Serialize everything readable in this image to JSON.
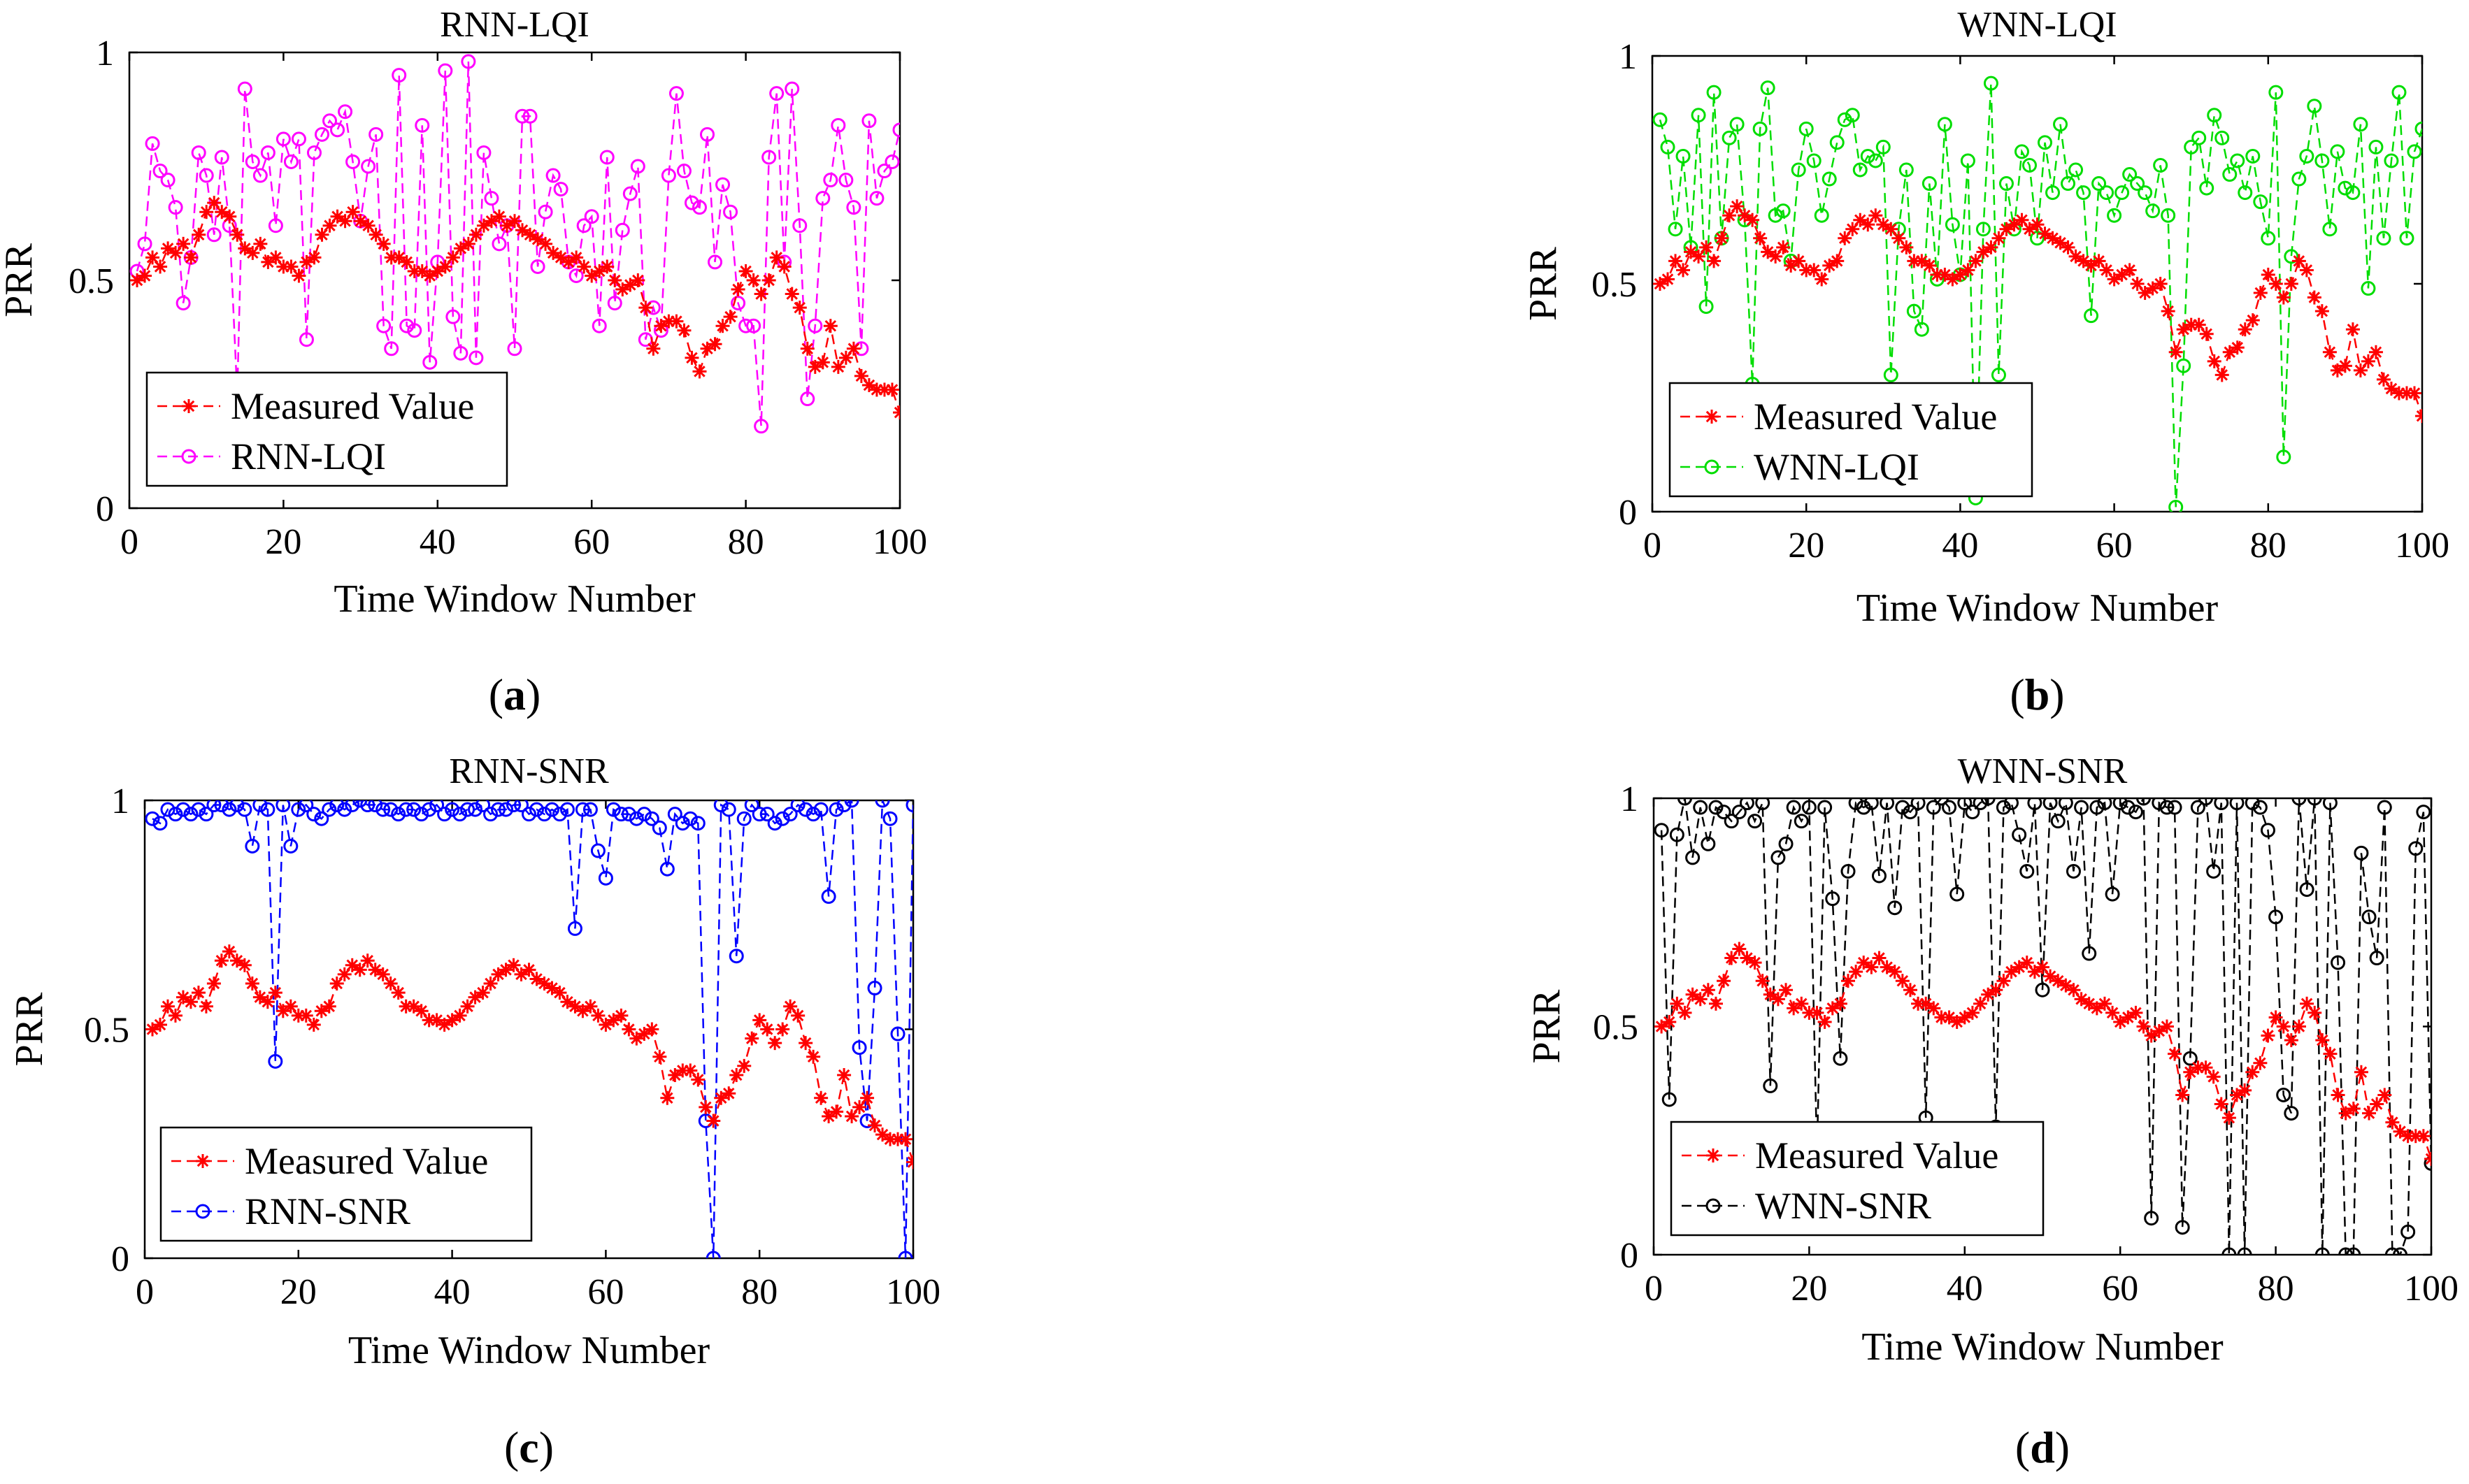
{
  "chart_data": [
    {
      "panel": "a",
      "type": "line",
      "title": "RNN-LQI",
      "xlabel": "Time Window Number",
      "ylabel": "PRR",
      "caption": "(a)",
      "xlim": [
        0,
        100
      ],
      "ylim": [
        0,
        1
      ],
      "xticks": [
        "0",
        "20",
        "40",
        "60",
        "80",
        "100"
      ],
      "yticks": [
        "0",
        "0.5",
        "1"
      ],
      "grid": false,
      "legend_position": "bottom-left",
      "series": [
        {
          "name": "Measured Value",
          "color": "#ff0000",
          "marker": "star",
          "values": [
            0.5,
            0.51,
            0.55,
            0.53,
            0.57,
            0.56,
            0.58,
            0.55,
            0.6,
            0.65,
            0.67,
            0.65,
            0.64,
            0.6,
            0.57,
            0.56,
            0.58,
            0.54,
            0.55,
            0.53,
            0.53,
            0.51,
            0.54,
            0.55,
            0.6,
            0.62,
            0.64,
            0.63,
            0.65,
            0.63,
            0.62,
            0.6,
            0.58,
            0.55,
            0.55,
            0.54,
            0.52,
            0.52,
            0.51,
            0.52,
            0.53,
            0.55,
            0.57,
            0.58,
            0.6,
            0.62,
            0.63,
            0.64,
            0.62,
            0.63,
            0.61,
            0.6,
            0.59,
            0.58,
            0.56,
            0.55,
            0.54,
            0.55,
            0.53,
            0.51,
            0.52,
            0.53,
            0.5,
            0.48,
            0.49,
            0.5,
            0.44,
            0.35,
            0.4,
            0.41,
            0.41,
            0.39,
            0.33,
            0.3,
            0.35,
            0.36,
            0.4,
            0.42,
            0.48,
            0.52,
            0.5,
            0.47,
            0.5,
            0.55,
            0.53,
            0.47,
            0.44,
            0.35,
            0.31,
            0.32,
            0.4,
            0.31,
            0.33,
            0.35,
            0.29,
            0.27,
            0.26,
            0.26,
            0.26,
            0.21
          ]
        },
        {
          "name": "RNN-LQI",
          "color": "#ff00ff",
          "marker": "circle",
          "values": [
            0.52,
            0.58,
            0.8,
            0.74,
            0.72,
            0.66,
            0.45,
            0.55,
            0.78,
            0.73,
            0.6,
            0.77,
            0.62,
            0.25,
            0.92,
            0.76,
            0.73,
            0.78,
            0.62,
            0.81,
            0.76,
            0.81,
            0.37,
            0.78,
            0.82,
            0.85,
            0.83,
            0.87,
            0.76,
            0.63,
            0.75,
            0.82,
            0.4,
            0.35,
            0.95,
            0.4,
            0.39,
            0.84,
            0.32,
            0.54,
            0.96,
            0.42,
            0.34,
            0.98,
            0.33,
            0.78,
            0.68,
            0.58,
            0.62,
            0.35,
            0.86,
            0.86,
            0.53,
            0.65,
            0.73,
            0.7,
            0.54,
            0.51,
            0.62,
            0.64,
            0.4,
            0.77,
            0.45,
            0.61,
            0.69,
            0.75,
            0.37,
            0.44,
            0.39,
            0.73,
            0.91,
            0.74,
            0.67,
            0.66,
            0.82,
            0.54,
            0.71,
            0.65,
            0.45,
            0.4,
            0.4,
            0.18,
            0.77,
            0.91,
            0.54,
            0.92,
            0.62,
            0.24,
            0.4,
            0.68,
            0.72,
            0.84,
            0.72,
            0.66,
            0.35,
            0.85,
            0.68,
            0.74,
            0.76,
            0.83
          ]
        }
      ]
    },
    {
      "panel": "b",
      "type": "line",
      "title": "WNN-LQI",
      "xlabel": "Time Window Number",
      "ylabel": "PRR",
      "caption": "(b)",
      "xlim": [
        0,
        100
      ],
      "ylim": [
        0,
        1
      ],
      "xticks": [
        "0",
        "20",
        "40",
        "60",
        "80",
        "100"
      ],
      "yticks": [
        "0",
        "0.5",
        "1"
      ],
      "grid": false,
      "legend_position": "bottom-left",
      "series": [
        {
          "name": "Measured Value",
          "color": "#ff0000",
          "marker": "star",
          "values": [
            0.5,
            0.51,
            0.55,
            0.53,
            0.57,
            0.56,
            0.58,
            0.55,
            0.6,
            0.65,
            0.67,
            0.65,
            0.64,
            0.6,
            0.57,
            0.56,
            0.58,
            0.54,
            0.55,
            0.53,
            0.53,
            0.51,
            0.54,
            0.55,
            0.6,
            0.62,
            0.64,
            0.63,
            0.65,
            0.63,
            0.62,
            0.6,
            0.58,
            0.55,
            0.55,
            0.54,
            0.52,
            0.52,
            0.51,
            0.52,
            0.53,
            0.55,
            0.57,
            0.58,
            0.6,
            0.62,
            0.63,
            0.64,
            0.62,
            0.63,
            0.61,
            0.6,
            0.59,
            0.58,
            0.56,
            0.55,
            0.54,
            0.55,
            0.53,
            0.51,
            0.52,
            0.53,
            0.5,
            0.48,
            0.49,
            0.5,
            0.44,
            0.35,
            0.4,
            0.41,
            0.41,
            0.39,
            0.33,
            0.3,
            0.35,
            0.36,
            0.4,
            0.42,
            0.48,
            0.52,
            0.5,
            0.47,
            0.5,
            0.55,
            0.53,
            0.47,
            0.44,
            0.35,
            0.31,
            0.32,
            0.4,
            0.31,
            0.33,
            0.35,
            0.29,
            0.27,
            0.26,
            0.26,
            0.26,
            0.21
          ]
        },
        {
          "name": "WNN-LQI",
          "color": "#00dd00",
          "marker": "circle",
          "values": [
            0.86,
            0.8,
            0.62,
            0.78,
            0.58,
            0.87,
            0.45,
            0.92,
            0.6,
            0.82,
            0.85,
            0.64,
            0.28,
            0.84,
            0.93,
            0.65,
            0.66,
            0.55,
            0.75,
            0.84,
            0.77,
            0.65,
            0.73,
            0.81,
            0.86,
            0.87,
            0.75,
            0.78,
            0.77,
            0.8,
            0.3,
            0.62,
            0.75,
            0.44,
            0.4,
            0.72,
            0.51,
            0.85,
            0.63,
            0.52,
            0.77,
            0.03,
            0.62,
            0.94,
            0.3,
            0.72,
            0.62,
            0.79,
            0.76,
            0.6,
            0.81,
            0.7,
            0.85,
            0.72,
            0.75,
            0.7,
            0.43,
            0.72,
            0.7,
            0.65,
            0.7,
            0.74,
            0.72,
            0.7,
            0.66,
            0.76,
            0.65,
            0.01,
            0.32,
            0.8,
            0.82,
            0.71,
            0.87,
            0.82,
            0.74,
            0.77,
            0.7,
            0.78,
            0.68,
            0.6,
            0.92,
            0.12,
            0.56,
            0.73,
            0.78,
            0.89,
            0.77,
            0.62,
            0.79,
            0.71,
            0.7,
            0.85,
            0.49,
            0.8,
            0.6,
            0.77,
            0.92,
            0.6,
            0.79,
            0.84
          ]
        }
      ]
    },
    {
      "panel": "c",
      "type": "line",
      "title": "RNN-SNR",
      "xlabel": "Time Window Number",
      "ylabel": "PRR",
      "caption": "(c)",
      "xlim": [
        0,
        100
      ],
      "ylim": [
        0,
        1
      ],
      "xticks": [
        "0",
        "20",
        "40",
        "60",
        "80",
        "100"
      ],
      "yticks": [
        "0",
        "0.5",
        "1"
      ],
      "grid": false,
      "legend_position": "bottom-left",
      "series": [
        {
          "name": "Measured Value",
          "color": "#ff0000",
          "marker": "star",
          "values": [
            0.5,
            0.51,
            0.55,
            0.53,
            0.57,
            0.56,
            0.58,
            0.55,
            0.6,
            0.65,
            0.67,
            0.65,
            0.64,
            0.6,
            0.57,
            0.56,
            0.58,
            0.54,
            0.55,
            0.53,
            0.53,
            0.51,
            0.54,
            0.55,
            0.6,
            0.62,
            0.64,
            0.63,
            0.65,
            0.63,
            0.62,
            0.6,
            0.58,
            0.55,
            0.55,
            0.54,
            0.52,
            0.52,
            0.51,
            0.52,
            0.53,
            0.55,
            0.57,
            0.58,
            0.6,
            0.62,
            0.63,
            0.64,
            0.62,
            0.63,
            0.61,
            0.6,
            0.59,
            0.58,
            0.56,
            0.55,
            0.54,
            0.55,
            0.53,
            0.51,
            0.52,
            0.53,
            0.5,
            0.48,
            0.49,
            0.5,
            0.44,
            0.35,
            0.4,
            0.41,
            0.41,
            0.39,
            0.33,
            0.3,
            0.35,
            0.36,
            0.4,
            0.42,
            0.48,
            0.52,
            0.5,
            0.47,
            0.5,
            0.55,
            0.53,
            0.47,
            0.44,
            0.35,
            0.31,
            0.32,
            0.4,
            0.31,
            0.33,
            0.35,
            0.29,
            0.27,
            0.26,
            0.26,
            0.26,
            0.21
          ]
        },
        {
          "name": "RNN-SNR",
          "color": "#0000ff",
          "marker": "circle",
          "values": [
            0.96,
            0.95,
            0.98,
            0.97,
            0.98,
            0.97,
            0.98,
            0.97,
            0.99,
            0.99,
            0.98,
            0.99,
            0.98,
            0.9,
            0.99,
            0.98,
            0.43,
            0.99,
            0.9,
            0.98,
            0.99,
            0.97,
            0.96,
            0.98,
            0.99,
            0.98,
            0.99,
            1.0,
            0.99,
            0.99,
            0.98,
            0.98,
            0.97,
            0.98,
            0.98,
            0.97,
            0.98,
            0.99,
            0.97,
            0.98,
            0.97,
            0.98,
            0.98,
            0.99,
            0.97,
            0.98,
            0.98,
            0.99,
            0.99,
            0.97,
            0.98,
            0.97,
            0.98,
            0.97,
            0.98,
            0.72,
            0.98,
            0.98,
            0.89,
            0.83,
            0.98,
            0.97,
            0.97,
            0.96,
            0.97,
            0.96,
            0.94,
            0.85,
            0.97,
            0.95,
            0.96,
            0.95,
            0.3,
            0.0,
            0.99,
            0.98,
            0.66,
            0.96,
            0.99,
            0.97,
            0.97,
            0.95,
            0.96,
            0.97,
            0.99,
            0.98,
            0.97,
            0.98,
            0.79,
            0.98,
            0.99,
            1.0,
            0.46,
            0.3,
            0.59,
            1.0,
            0.96,
            0.49,
            0.0,
            0.99
          ]
        }
      ]
    },
    {
      "panel": "d",
      "type": "line",
      "title": "WNN-SNR",
      "xlabel": "Time Window Number",
      "ylabel": "PRR",
      "caption": "(d)",
      "xlim": [
        0,
        100
      ],
      "ylim": [
        0,
        1
      ],
      "xticks": [
        "0",
        "20",
        "40",
        "60",
        "80",
        "100"
      ],
      "yticks": [
        "0",
        "0.5",
        "1"
      ],
      "grid": false,
      "legend_position": "bottom-left",
      "series": [
        {
          "name": "Measured Value",
          "color": "#ff0000",
          "marker": "star",
          "values": [
            0.5,
            0.51,
            0.55,
            0.53,
            0.57,
            0.56,
            0.58,
            0.55,
            0.6,
            0.65,
            0.67,
            0.65,
            0.64,
            0.6,
            0.57,
            0.56,
            0.58,
            0.54,
            0.55,
            0.53,
            0.53,
            0.51,
            0.54,
            0.55,
            0.6,
            0.62,
            0.64,
            0.63,
            0.65,
            0.63,
            0.62,
            0.6,
            0.58,
            0.55,
            0.55,
            0.54,
            0.52,
            0.52,
            0.51,
            0.52,
            0.53,
            0.55,
            0.57,
            0.58,
            0.6,
            0.62,
            0.63,
            0.64,
            0.62,
            0.63,
            0.61,
            0.6,
            0.59,
            0.58,
            0.56,
            0.55,
            0.54,
            0.55,
            0.53,
            0.51,
            0.52,
            0.53,
            0.5,
            0.48,
            0.49,
            0.5,
            0.44,
            0.35,
            0.4,
            0.41,
            0.41,
            0.39,
            0.33,
            0.3,
            0.35,
            0.36,
            0.4,
            0.42,
            0.48,
            0.52,
            0.5,
            0.47,
            0.5,
            0.55,
            0.53,
            0.47,
            0.44,
            0.35,
            0.31,
            0.32,
            0.4,
            0.31,
            0.33,
            0.35,
            0.29,
            0.27,
            0.26,
            0.26,
            0.26,
            0.21
          ]
        },
        {
          "name": "WNN-SNR",
          "color": "#000000",
          "marker": "circle",
          "values": [
            0.93,
            0.34,
            0.92,
            1.0,
            0.87,
            0.98,
            0.9,
            0.98,
            0.97,
            0.95,
            0.97,
            0.99,
            0.95,
            0.99,
            0.37,
            0.87,
            0.9,
            0.98,
            0.95,
            0.98,
            0.22,
            0.98,
            0.78,
            0.43,
            0.84,
            0.99,
            0.98,
            0.99,
            0.83,
            0.99,
            0.76,
            0.98,
            0.97,
            0.99,
            0.3,
            0.98,
            1.0,
            0.98,
            0.79,
            0.99,
            0.97,
            0.99,
            1.0,
            0.28,
            0.98,
            0.99,
            0.92,
            0.84,
            0.99,
            0.58,
            0.99,
            0.95,
            0.99,
            0.84,
            0.98,
            0.66,
            0.98,
            0.99,
            0.79,
            0.99,
            0.98,
            0.97,
            1.0,
            0.08,
            0.99,
            0.98,
            0.98,
            0.06,
            0.43,
            0.98,
            1.0,
            0.84,
            0.99,
            0.0,
            0.99,
            0.0,
            0.99,
            0.98,
            0.93,
            0.74,
            0.35,
            0.31,
            1.0,
            0.8,
            1.0,
            0.0,
            0.99,
            0.64,
            0.0,
            0.0,
            0.88,
            0.74,
            0.65,
            0.98,
            0.0,
            0.0,
            0.05,
            0.89,
            0.97,
            0.2
          ]
        }
      ]
    }
  ]
}
